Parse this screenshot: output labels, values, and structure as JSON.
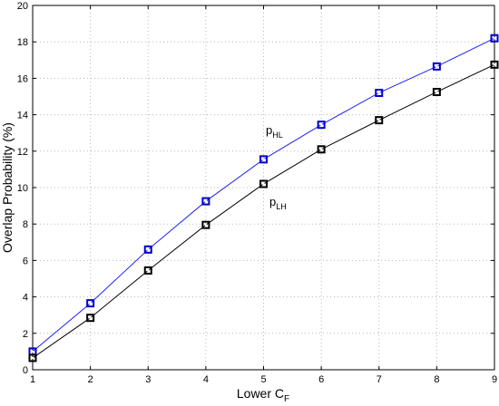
{
  "chart_data": {
    "type": "line",
    "xlabel": "Lower C",
    "xlabel_sub": "F",
    "ylabel": "Overlap Probability (%)",
    "xlim": [
      1,
      9
    ],
    "ylim": [
      0,
      20
    ],
    "xticks": [
      1,
      2,
      3,
      4,
      5,
      6,
      7,
      8,
      9
    ],
    "yticks": [
      0,
      2,
      4,
      6,
      8,
      10,
      12,
      14,
      16,
      18,
      20
    ],
    "grid": true,
    "legend": "none",
    "x": [
      1,
      2,
      3,
      4,
      5,
      6,
      7,
      8,
      9
    ],
    "series": [
      {
        "name": "p",
        "name_sub": "HL",
        "color": "#1f1fff",
        "marker_color": "#0000cc",
        "values": [
          1.0,
          3.65,
          6.6,
          9.25,
          11.55,
          13.45,
          15.2,
          16.65,
          18.2
        ]
      },
      {
        "name": "p",
        "name_sub": "LH",
        "color": "#000000",
        "marker_color": "#000000",
        "values": [
          0.65,
          2.85,
          5.45,
          7.95,
          10.2,
          12.1,
          13.7,
          15.25,
          16.75
        ]
      }
    ]
  }
}
